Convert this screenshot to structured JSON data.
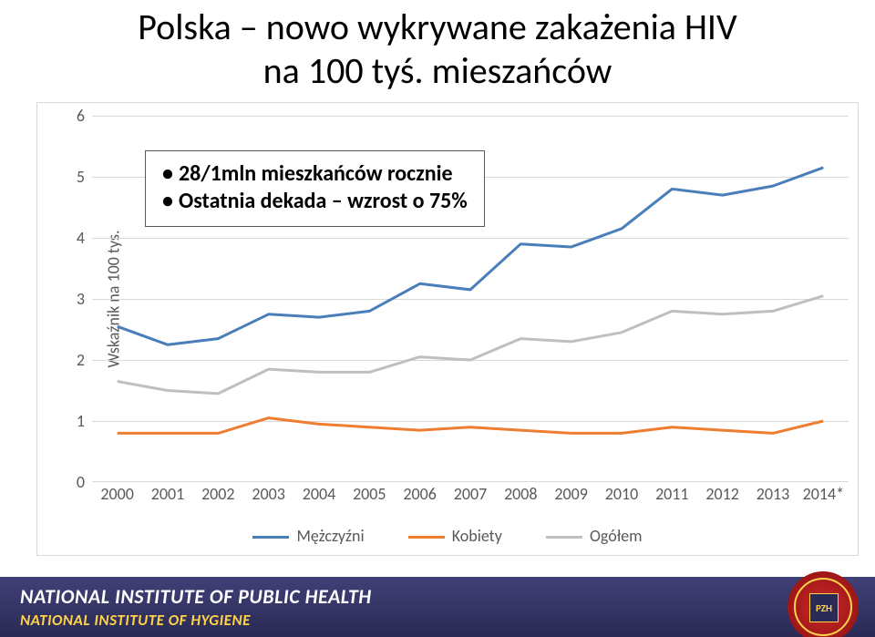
{
  "title_line1": "Polska – nowo wykrywane zakażenia HIV",
  "title_line2": "na 100 tyś. mieszańców",
  "chart": {
    "type": "line",
    "ylabel": "Wskaźnik na 100 tys.",
    "ylim": [
      0,
      6
    ],
    "ytick_step": 1,
    "yticks": [
      0,
      1,
      2,
      3,
      4,
      5,
      6
    ],
    "grid_color": "#d9d9d9",
    "background_color": "#ffffff",
    "label_color": "#595959",
    "label_fontsize": 18,
    "line_width": 3,
    "categories": [
      "2000",
      "2001",
      "2002",
      "2003",
      "2004",
      "2005",
      "2006",
      "2007",
      "2008",
      "2009",
      "2010",
      "2011",
      "2012",
      "2013",
      "2014*"
    ],
    "series": [
      {
        "name": "Mężczyźni",
        "color": "#4a7ebb",
        "values": [
          2.55,
          2.25,
          2.35,
          2.75,
          2.7,
          2.8,
          3.25,
          3.15,
          3.9,
          3.85,
          4.15,
          4.8,
          4.7,
          4.85,
          5.15
        ]
      },
      {
        "name": "Kobiety",
        "color": "#ed7d31",
        "values": [
          0.8,
          0.8,
          0.8,
          1.05,
          0.95,
          0.9,
          0.85,
          0.9,
          0.85,
          0.8,
          0.8,
          0.9,
          0.85,
          0.8,
          1.0
        ]
      },
      {
        "name": "Ogółem",
        "color": "#bfbfbf",
        "values": [
          1.65,
          1.5,
          1.45,
          1.85,
          1.8,
          1.8,
          2.05,
          2.0,
          2.35,
          2.3,
          2.45,
          2.8,
          2.75,
          2.8,
          3.05
        ]
      }
    ],
    "annotation": {
      "bullets": [
        "28/1mln mieszkańców rocznie",
        "Ostatnia dekada – wzrost o 75%"
      ],
      "box_border": "#595959",
      "font_weight": "bold",
      "font_size": 24
    }
  },
  "legend": {
    "items": [
      {
        "label": "Mężczyźni",
        "color": "#4a7ebb"
      },
      {
        "label": "Kobiety",
        "color": "#ed7d31"
      },
      {
        "label": "Ogółem",
        "color": "#bfbfbf"
      }
    ]
  },
  "footer": {
    "line1": "NATIONAL INSTITUTE OF PUBLIC HEALTH",
    "line2": "NATIONAL INSTITUTE OF HYGIENE",
    "logo_text": "PZH",
    "bg_color": "#2a2a55",
    "line1_color": "#ffffff",
    "line2_color": "#ffd24a"
  }
}
